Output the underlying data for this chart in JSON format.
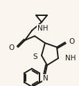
{
  "background_color": "#faf6ee",
  "bond_color": "#1a1a1a",
  "line_width": 1.4,
  "font_size": 7.5,
  "figsize": [
    1.15,
    1.24
  ],
  "dpi": 100,
  "xlim": [
    0,
    115
  ],
  "ylim": [
    0,
    124
  ]
}
